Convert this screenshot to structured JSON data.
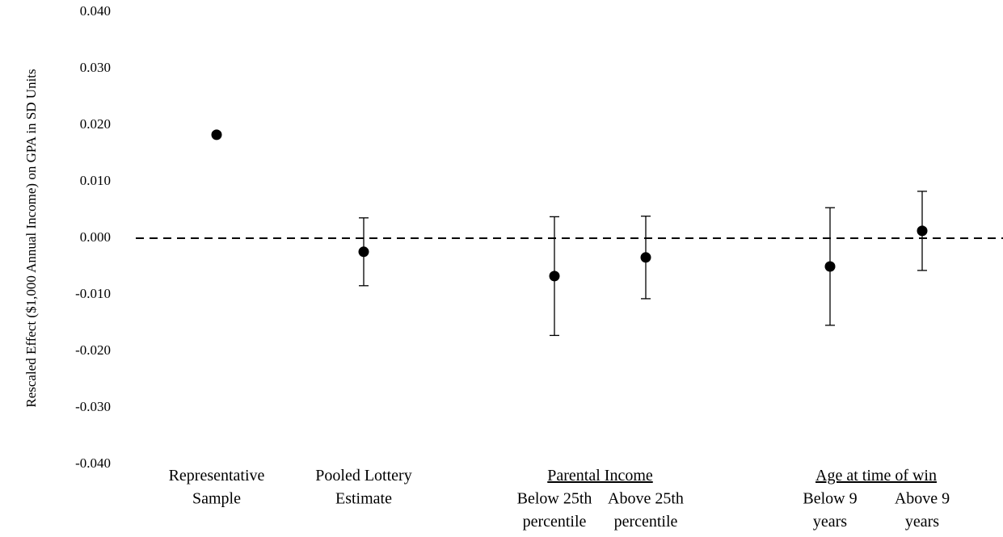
{
  "chart_data": {
    "type": "errorbar",
    "y_label": "Rescaled Effect ($1,000 Annual Income) on GPA in SD Units",
    "ylim": [
      -0.04,
      0.04
    ],
    "yticks": [
      {
        "value": -0.04,
        "label": "-0.040"
      },
      {
        "value": -0.03,
        "label": "-0.030"
      },
      {
        "value": -0.02,
        "label": "-0.020"
      },
      {
        "value": -0.01,
        "label": "-0.010"
      },
      {
        "value": 0,
        "label": "0.000"
      },
      {
        "value": 0.01,
        "label": "0.010"
      },
      {
        "value": 0.02,
        "label": "0.020"
      },
      {
        "value": 0.03,
        "label": "0.030"
      },
      {
        "value": 0.04,
        "label": "0.040"
      }
    ],
    "reference_line": 0,
    "color": "#000000",
    "groups": [
      {
        "label": null,
        "categories": [
          [
            "Representative",
            "Sample"
          ]
        ],
        "values": [
          0.0183
        ],
        "errors": [
          null
        ]
      },
      {
        "label": null,
        "categories": [
          [
            "Pooled Lottery",
            "Estimate"
          ]
        ],
        "values": [
          -0.0024
        ],
        "errors": [
          0.006
        ]
      },
      {
        "label": "Parental Income",
        "categories": [
          [
            "Below 25th",
            "percentile"
          ],
          [
            "Above 25th",
            "percentile"
          ]
        ],
        "values": [
          -0.0067,
          -0.0034
        ],
        "errors": [
          0.0105,
          0.0073
        ]
      },
      {
        "label": "Age at time of win",
        "categories": [
          [
            "Below 9",
            "years"
          ],
          [
            "Above 9",
            "years"
          ]
        ],
        "values": [
          -0.005,
          0.0013
        ],
        "errors": [
          0.0104,
          0.007
        ]
      }
    ]
  }
}
